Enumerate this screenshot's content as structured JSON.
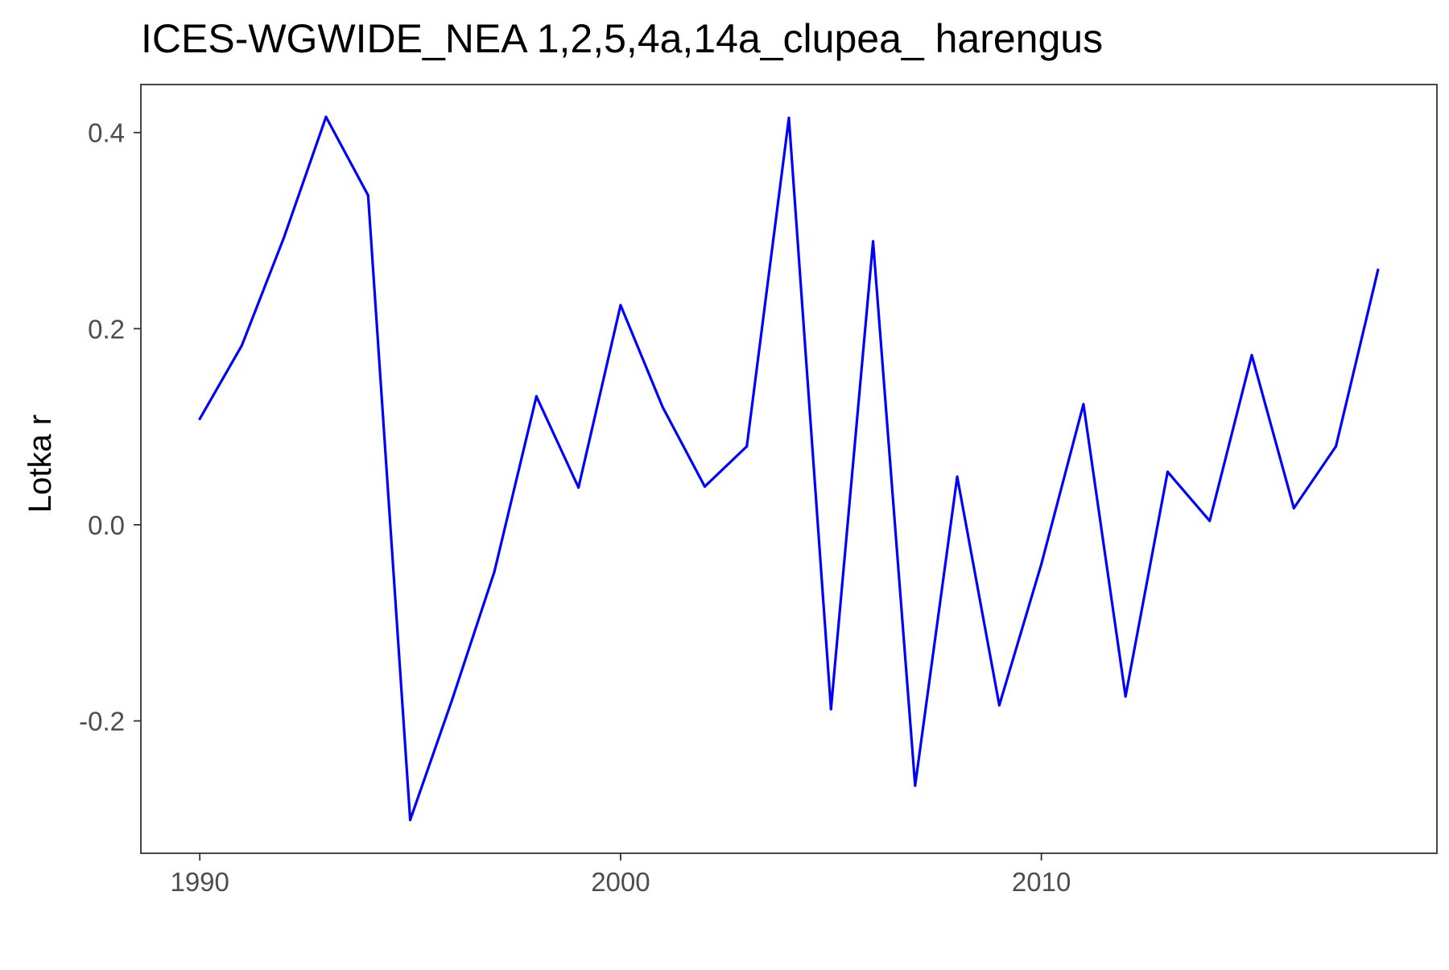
{
  "chart_data": {
    "type": "line",
    "title": "ICES-WGWIDE_NEA 1,2,5,4a,14a_clupea_ harengus",
    "xlabel": "",
    "ylabel": "Lotka r",
    "xlim": [
      1988.6,
      2019.4
    ],
    "ylim": [
      -0.335,
      0.449
    ],
    "x_ticks": [
      1990,
      2000,
      2010
    ],
    "x_tick_labels": [
      "1990",
      "2000",
      "2010"
    ],
    "y_ticks": [
      -0.2,
      0.0,
      0.2,
      0.4
    ],
    "y_tick_labels": [
      "-0.2",
      "0.0",
      "0.2",
      "0.4"
    ],
    "grid": false,
    "series": [
      {
        "color": "#0000ff",
        "x": [
          1990,
          1991,
          1992,
          1993,
          1994,
          1995,
          1996,
          1997,
          1998,
          1999,
          2000,
          2001,
          2002,
          2003,
          2004,
          2005,
          2006,
          2007,
          2008,
          2009,
          2010,
          2011,
          2012,
          2013,
          2014,
          2015,
          2016,
          2017,
          2018
        ],
        "y": [
          0.108,
          0.183,
          0.293,
          0.416,
          0.336,
          -0.301,
          -0.178,
          -0.048,
          0.131,
          0.038,
          0.224,
          0.12,
          0.039,
          0.08,
          0.415,
          -0.188,
          0.289,
          -0.266,
          0.049,
          -0.184,
          -0.04,
          0.123,
          -0.175,
          0.054,
          0.004,
          0.173,
          0.017,
          0.08,
          0.26
        ]
      }
    ]
  }
}
